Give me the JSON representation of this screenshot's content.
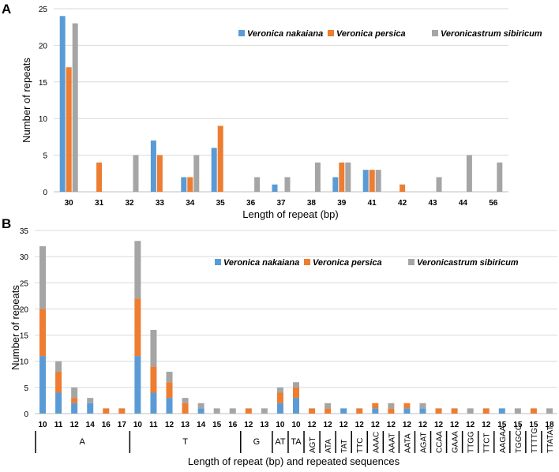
{
  "colors": {
    "nakaiana": "#5b9bd5",
    "persica": "#ed7d31",
    "sibiricum": "#a5a5a5",
    "grid": "#d9d9d9"
  },
  "chart_data": [
    {
      "panel": "A",
      "type": "bar",
      "grouping": "clustered",
      "categories": [
        "30",
        "31",
        "32",
        "33",
        "34",
        "35",
        "36",
        "37",
        "38",
        "39",
        "41",
        "42",
        "43",
        "44",
        "56"
      ],
      "series": [
        {
          "name": "Veronica nakaiana",
          "color_key": "nakaiana",
          "values": [
            24,
            0,
            0,
            7,
            2,
            6,
            0,
            1,
            0,
            2,
            3,
            0,
            0,
            0,
            0
          ]
        },
        {
          "name": "Veronica persica",
          "color_key": "persica",
          "values": [
            17,
            4,
            0,
            5,
            2,
            9,
            0,
            0,
            0,
            4,
            3,
            1,
            0,
            0,
            0
          ]
        },
        {
          "name": "Veronicastrum sibiricum",
          "color_key": "sibiricum",
          "values": [
            23,
            0,
            5,
            0,
            5,
            0,
            2,
            2,
            4,
            4,
            3,
            0,
            2,
            5,
            4
          ]
        }
      ],
      "xlabel": "Length of repeat (bp)",
      "ylabel": "Number of repeats",
      "ylim": [
        0,
        25
      ],
      "yticks": [
        0,
        5,
        10,
        15,
        20,
        25
      ],
      "legend": "top-right"
    },
    {
      "panel": "B",
      "type": "bar",
      "grouping": "stacked",
      "categories": [
        "10",
        "11",
        "12",
        "14",
        "16",
        "17",
        "10",
        "11",
        "12",
        "13",
        "14",
        "15",
        "16",
        "12",
        "13",
        "10",
        "10",
        "12",
        "12",
        "12",
        "12",
        "12",
        "12",
        "12",
        "12",
        "12",
        "12",
        "12",
        "12",
        "15",
        "15",
        "15",
        "18"
      ],
      "sequence_labels": [
        "AGT",
        "ATA",
        "TAT",
        "TTC",
        "AAAC",
        "AAAT",
        "AATA",
        "AGAT",
        "CCAA",
        "GAAA",
        "TTGG",
        "TTCT",
        "AAGAA",
        "TGGCC",
        "TTTTG",
        "TTATAT"
      ],
      "groups": [
        {
          "label": "A",
          "count": 6
        },
        {
          "label": "T",
          "count": 7
        },
        {
          "label": "G",
          "count": 2
        },
        {
          "label": "AT",
          "count": 1
        },
        {
          "label": "TA",
          "count": 1
        }
      ],
      "series": [
        {
          "name": "Veronica nakaiana",
          "color_key": "nakaiana",
          "values": [
            11,
            4,
            2,
            2,
            0,
            0,
            11,
            4,
            3,
            0,
            1,
            0,
            0,
            0,
            0,
            2,
            3,
            0,
            0,
            1,
            0,
            1,
            0,
            1,
            1,
            0,
            0,
            0,
            0,
            1,
            0,
            0,
            0
          ]
        },
        {
          "name": "Veronica persica",
          "color_key": "persica",
          "values": [
            9,
            4,
            1,
            0,
            1,
            1,
            11,
            5,
            3,
            2,
            0,
            0,
            0,
            1,
            0,
            2,
            2,
            1,
            1,
            0,
            1,
            1,
            1,
            1,
            0,
            1,
            1,
            0,
            1,
            0,
            0,
            1,
            0
          ]
        },
        {
          "name": "Veronicastrum sibiricum",
          "color_key": "sibiricum",
          "values": [
            12,
            2,
            2,
            1,
            0,
            0,
            11,
            7,
            2,
            1,
            1,
            1,
            1,
            0,
            1,
            1,
            1,
            0,
            1,
            0,
            0,
            0,
            1,
            0,
            1,
            0,
            0,
            1,
            0,
            0,
            1,
            0,
            1
          ]
        }
      ],
      "xlabel": "Length of repeat (bp) and repeated sequences",
      "ylabel": "Number of repeats",
      "ylim": [
        0,
        35
      ],
      "yticks": [
        0,
        5,
        10,
        15,
        20,
        25,
        30,
        35
      ],
      "legend": "top-right"
    }
  ]
}
